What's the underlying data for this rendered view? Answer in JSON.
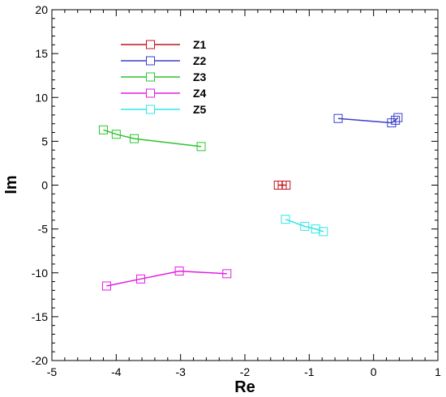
{
  "chart_data": {
    "type": "scatter",
    "title": "",
    "xlabel": "Re",
    "ylabel": "Im",
    "xlim": [
      -5,
      1
    ],
    "ylim": [
      -20,
      20
    ],
    "x_ticks": [
      "-5",
      "-4",
      "-3",
      "-2",
      "-1",
      "0",
      "1"
    ],
    "y_ticks": [
      "-20",
      "-15",
      "-10",
      "-5",
      "0",
      "5",
      "10",
      "15",
      "20"
    ],
    "grid": false,
    "legend_position": "top-left",
    "marker": "open-square",
    "series": [
      {
        "name": "Z1",
        "color": "#c0141c",
        "points": [
          [
            -1.48,
            0.0
          ],
          [
            -1.42,
            0.0
          ],
          [
            -1.36,
            0.0
          ]
        ]
      },
      {
        "name": "Z2",
        "color": "#3a3fc8",
        "points": [
          [
            -0.55,
            7.6
          ],
          [
            0.28,
            7.1
          ],
          [
            0.34,
            7.4
          ],
          [
            0.38,
            7.7
          ]
        ]
      },
      {
        "name": "Z3",
        "color": "#2ec42e",
        "points": [
          [
            -4.2,
            6.3
          ],
          [
            -4.0,
            5.8
          ],
          [
            -3.72,
            5.3
          ],
          [
            -2.68,
            4.4
          ]
        ]
      },
      {
        "name": "Z4",
        "color": "#e21ce2",
        "points": [
          [
            -4.15,
            -11.5
          ],
          [
            -3.62,
            -10.7
          ],
          [
            -3.02,
            -9.8
          ],
          [
            -2.28,
            -10.1
          ]
        ]
      },
      {
        "name": "Z5",
        "color": "#33e6e6",
        "points": [
          [
            -1.37,
            -3.9
          ],
          [
            -1.07,
            -4.7
          ],
          [
            -0.9,
            -5.0
          ],
          [
            -0.78,
            -5.3
          ]
        ]
      }
    ]
  }
}
